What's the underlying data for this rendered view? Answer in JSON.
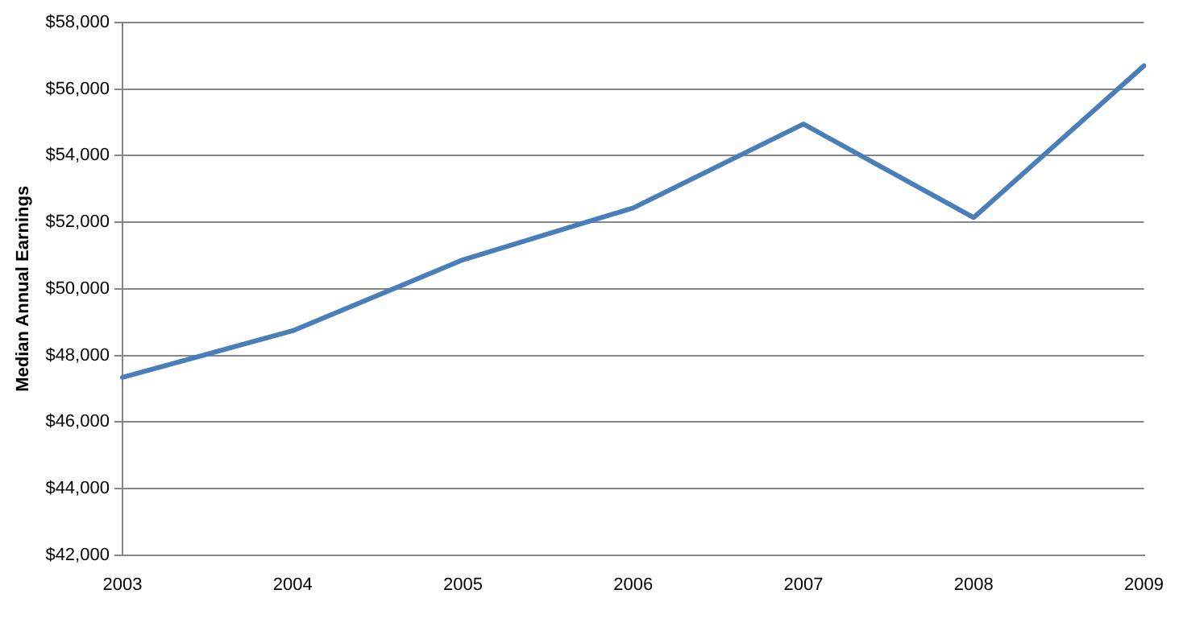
{
  "chart_data": {
    "type": "line",
    "ylabel": "Median Annual Earnings",
    "categories": [
      "2003",
      "2004",
      "2005",
      "2006",
      "2007",
      "2008",
      "2009"
    ],
    "series": [
      {
        "color": "#4a7ebb",
        "values": [
          47340,
          48740,
          50870,
          52430,
          54950,
          52140,
          56700
        ]
      }
    ],
    "ylim": [
      42000,
      58000
    ],
    "yticks": [
      {
        "value": 42000,
        "label": "$42,000"
      },
      {
        "value": 44000,
        "label": "$44,000"
      },
      {
        "value": 46000,
        "label": "$46,000"
      },
      {
        "value": 48000,
        "label": "$48,000"
      },
      {
        "value": 50000,
        "label": "$50,000"
      },
      {
        "value": 52000,
        "label": "$52,000"
      },
      {
        "value": 54000,
        "label": "$54,000"
      },
      {
        "value": 56000,
        "label": "$56,000"
      },
      {
        "value": 58000,
        "label": "$58,000"
      }
    ],
    "grid": "y",
    "legend": false,
    "marker": "none",
    "line_style": "solid"
  }
}
